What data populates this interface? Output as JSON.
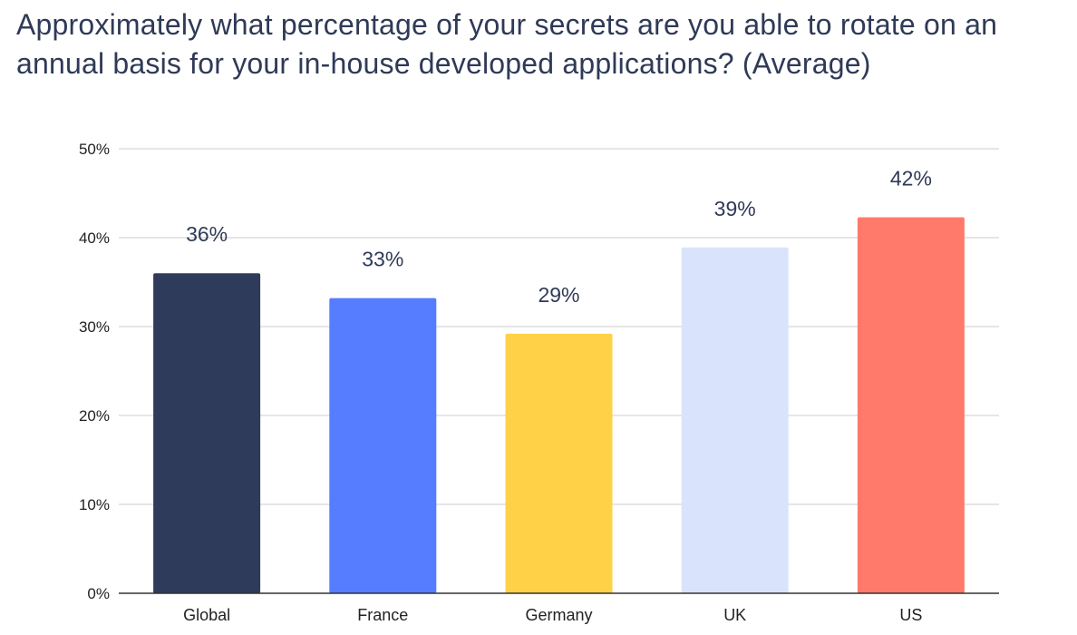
{
  "chart_data": {
    "type": "bar",
    "title": "Approximately what percentage of your secrets are you able to rotate on an annual basis for your in-house developed applications? (Average)",
    "categories": [
      "Global",
      "France",
      "Germany",
      "UK",
      "US"
    ],
    "values": [
      36,
      33.2,
      29.2,
      38.9,
      42.3
    ],
    "data_labels": [
      "36%",
      "33%",
      "29%",
      "39%",
      "42%"
    ],
    "colors": [
      "#2f3b5b",
      "#567cff",
      "#ffd147",
      "#d9e3fb",
      "#ff7a6b"
    ],
    "yticks": [
      "0%",
      "10%",
      "20%",
      "30%",
      "40%",
      "50%"
    ],
    "ylim": [
      0,
      50
    ],
    "grid": true,
    "legend": "none"
  }
}
